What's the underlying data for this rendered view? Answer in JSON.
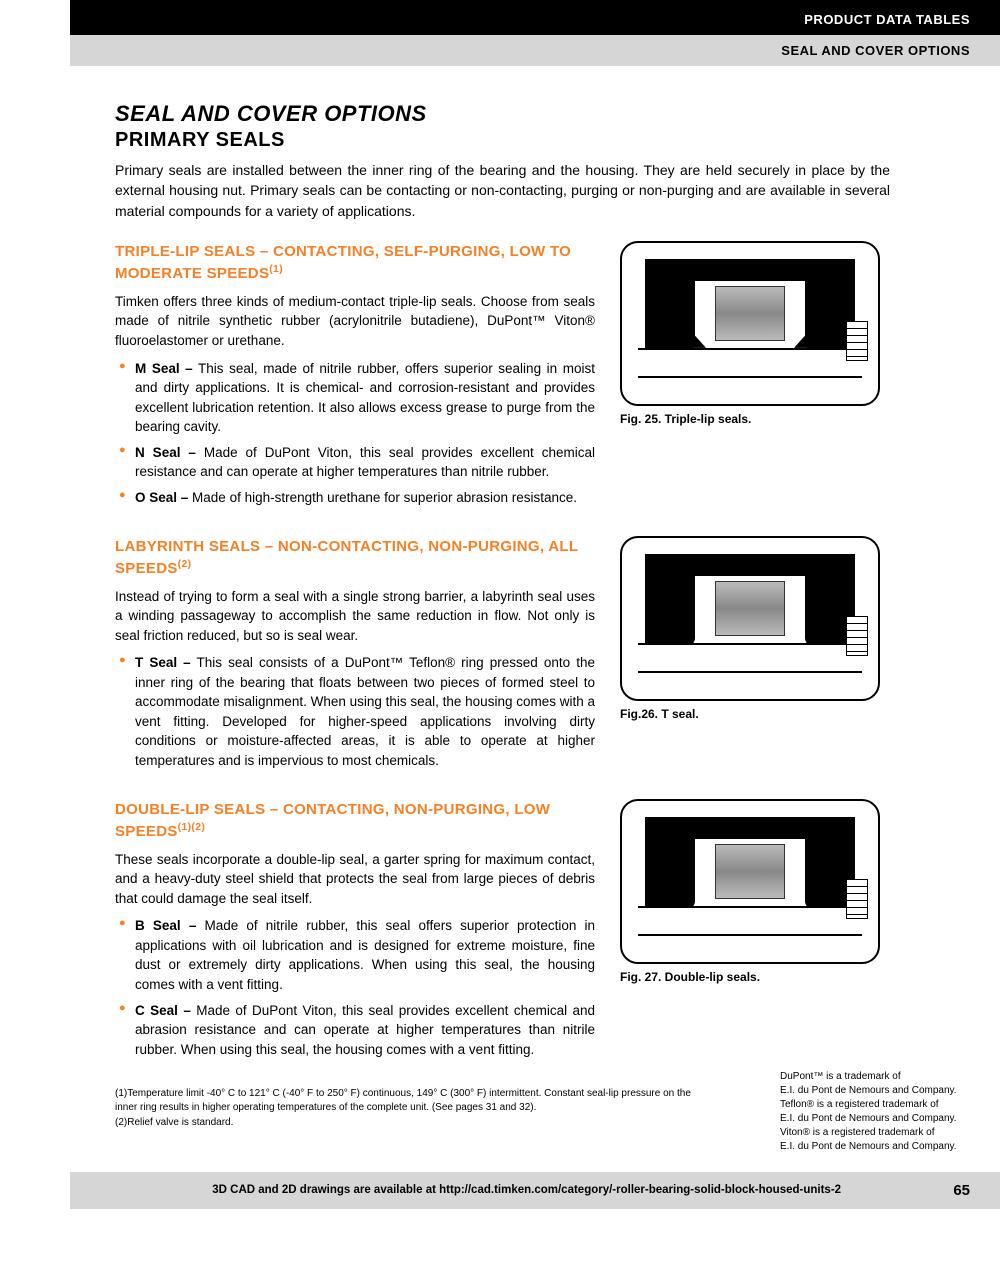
{
  "header": {
    "line1": "PRODUCT DATA TABLES",
    "line2": "SEAL AND COVER OPTIONS"
  },
  "main_title": "SEAL AND COVER OPTIONS",
  "sub_title": "PRIMARY SEALS",
  "intro": "Primary seals are installed between the inner ring of the bearing and the housing. They are held securely in place by the external housing nut. Primary seals can be contacting or non-contacting, purging or non-purging and are available in several material compounds for a variety of applications.",
  "sections": {
    "triple": {
      "heading": "TRIPLE-LIP SEALS – CONTACTING, SELF-PURGING, LOW TO MODERATE SPEEDS",
      "heading_sup": "(1)",
      "body": "Timken offers three kinds of medium-contact triple-lip seals. Choose from seals made of nitrile synthetic rubber (acrylonitrile butadiene), DuPont™ Viton® fluoroelastomer or urethane.",
      "bullets": [
        {
          "label": "M Seal –",
          "text": " This seal, made of nitrile rubber, offers superior sealing in moist and dirty applications. It is chemical- and corrosion-resistant and provides excellent lubrication retention. It also allows excess grease to purge from the bearing cavity."
        },
        {
          "label": "N Seal –",
          "text": " Made of DuPont Viton, this seal provides excellent chemical resistance and can operate at higher temperatures than nitrile rubber."
        },
        {
          "label": "O Seal –",
          "text": " Made of high-strength urethane for superior abrasion resistance."
        }
      ],
      "caption": "Fig. 25. Triple-lip seals."
    },
    "labyrinth": {
      "heading": "LABYRINTH SEALS – NON-CONTACTING, NON-PURGING, ALL SPEEDS",
      "heading_sup": "(2)",
      "body": "Instead of trying to form a seal with a single strong barrier, a labyrinth seal uses a winding passageway to accomplish the same reduction in flow. Not only is seal friction reduced, but so is seal wear.",
      "bullets": [
        {
          "label": "T Seal –",
          "text": " This seal consists of a DuPont™ Teflon® ring pressed onto the inner ring of the bearing that floats between two pieces of formed steel to accommodate misalignment. When using this seal, the housing comes with a vent fitting. Developed for higher-speed applications involving dirty conditions or moisture-affected areas, it is able to operate at higher temperatures and is impervious to most chemicals."
        }
      ],
      "caption": "Fig.26. T seal."
    },
    "double": {
      "heading": "DOUBLE-LIP SEALS – CONTACTING, NON-PURGING, LOW SPEEDS",
      "heading_sup": "(1)(2)",
      "body": "These seals incorporate a double-lip seal, a garter spring for maximum contact, and a heavy-duty steel shield that protects the seal from large pieces of debris that could damage the seal itself.",
      "bullets": [
        {
          "label": "B Seal –",
          "text": " Made of nitrile rubber, this seal offers superior protection in applications with oil lubrication and is designed for extreme moisture, fine dust or extremely dirty applications. When using this seal, the housing comes with a vent fitting."
        },
        {
          "label": "C Seal –",
          "text": " Made of DuPont Viton, this seal provides excellent chemical and abrasion resistance and can operate at higher temperatures than nitrile rubber. When using this seal, the housing comes with a vent fitting."
        }
      ],
      "caption": "Fig. 27. Double-lip seals."
    }
  },
  "footnotes": {
    "f1": "(1)Temperature limit -40° C to 121° C (-40° F to 250° F) continuous, 149° C (300° F) intermittent. Constant seal-lip pressure on the inner ring results in higher operating temperatures of the complete unit. (See pages 31 and 32).",
    "f2": "(2)Relief valve is standard."
  },
  "trademark": "DuPont™ is a trademark of\nE.I. du Pont de Nemours and Company.\nTeflon® is a registered trademark of\nE.I. du Pont de Nemours and Company.\nViton® is a registered trademark of\nE.I. du Pont de Nemours and Company.",
  "footer": {
    "text": "3D CAD and 2D drawings are available at http://cad.timken.com/category/-roller-bearing-solid-block-housed-units-2",
    "page": "65"
  },
  "colors": {
    "accent": "#f58025",
    "black": "#000000",
    "gray": "#d6d6d6"
  }
}
